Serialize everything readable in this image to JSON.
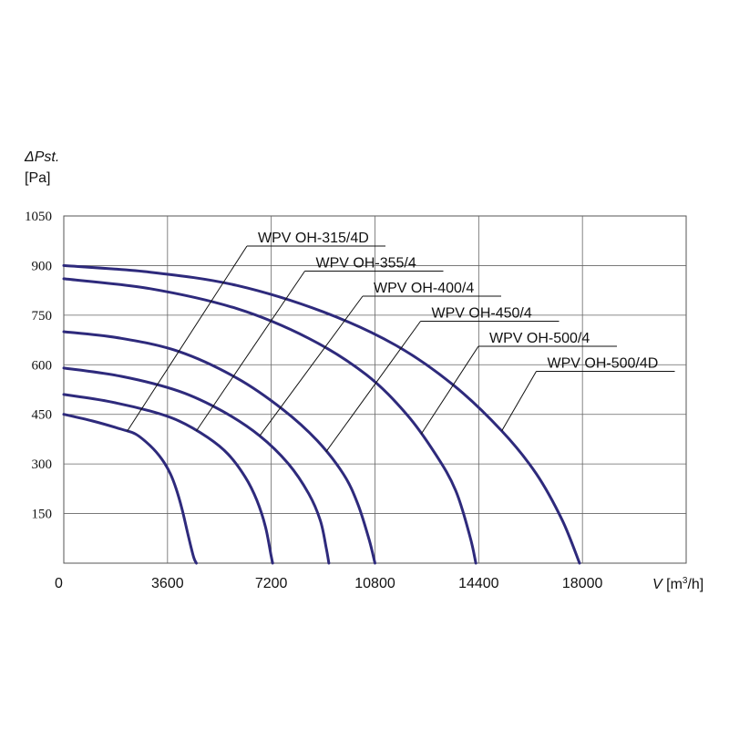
{
  "chart_data": {
    "type": "line",
    "xlabel_symbol": "V",
    "xlabel_unit_prefix": " [m",
    "xlabel_unit_sup": "3",
    "xlabel_unit_suffix": "/h]",
    "ylabel_symbol": "ΔPst.",
    "ylabel_unit": "[Pa]",
    "xlim": [
      0,
      21600
    ],
    "ylim": [
      0,
      1050
    ],
    "x_ticks": [
      0,
      3600,
      7200,
      10800,
      14400,
      18000
    ],
    "x_tick_labels": [
      "0",
      "3600",
      "7200",
      "10800",
      "14400",
      "18000"
    ],
    "y_ticks": [
      150,
      300,
      450,
      600,
      750,
      900,
      1050
    ],
    "y_tick_labels": [
      "150",
      "300",
      "450",
      "600",
      "750",
      "900",
      "1050"
    ],
    "grid": true,
    "line_color": "#2e2a7c",
    "series": [
      {
        "name": "WPV OH-315/4D",
        "x": [
          0,
          1000,
          2000,
          2500,
          3000,
          3400,
          3700,
          3900,
          4100,
          4300,
          4500,
          4600
        ],
        "y": [
          450,
          430,
          405,
          390,
          355,
          315,
          270,
          225,
          165,
          90,
          20,
          0
        ],
        "pointer_at": 2200
      },
      {
        "name": "WPV OH-355/4",
        "x": [
          0,
          1500,
          3000,
          4000,
          5000,
          5700,
          6300,
          6700,
          7000,
          7200,
          7250
        ],
        "y": [
          510,
          490,
          460,
          430,
          380,
          330,
          260,
          190,
          110,
          20,
          0
        ],
        "pointer_at": 4600
      },
      {
        "name": "WPV OH-400/4",
        "x": [
          0,
          2000,
          4000,
          5500,
          6800,
          7800,
          8500,
          8900,
          9100,
          9200
        ],
        "y": [
          590,
          565,
          520,
          460,
          385,
          300,
          210,
          130,
          50,
          0
        ],
        "pointer_at": 6800
      },
      {
        "name": "WPV OH-450/4",
        "x": [
          0,
          2000,
          4000,
          6000,
          7600,
          8800,
          9700,
          10200,
          10600,
          10800
        ],
        "y": [
          700,
          680,
          640,
          560,
          465,
          370,
          270,
          180,
          70,
          0
        ],
        "pointer_at": 9100
      },
      {
        "name": "WPV OH-500/4",
        "x": [
          0,
          3000,
          6000,
          8500,
          10500,
          11900,
          12900,
          13600,
          14100,
          14300
        ],
        "y": [
          860,
          830,
          770,
          680,
          570,
          450,
          330,
          220,
          80,
          0
        ],
        "pointer_at": 12400
      },
      {
        "name": "WPV OH-500/4D",
        "x": [
          0,
          3000,
          6000,
          9000,
          11500,
          13500,
          15200,
          16400,
          17300,
          17900
        ],
        "y": [
          900,
          880,
          840,
          760,
          660,
          540,
          400,
          270,
          130,
          0
        ],
        "pointer_at": 15200
      }
    ]
  }
}
